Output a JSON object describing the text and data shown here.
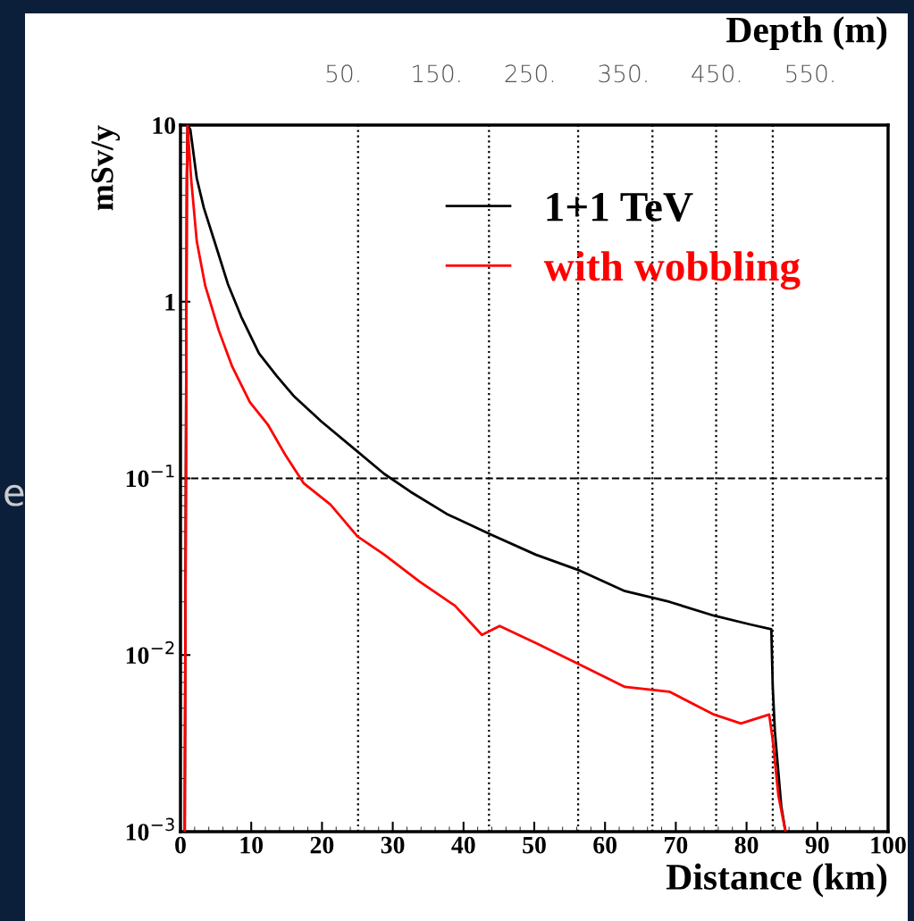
{
  "chart_data": {
    "type": "line",
    "xlabel": "Distance (km)",
    "ylabel": "mSv/y",
    "x2label": "Depth (m)",
    "annotations": [
      "e",
      "50.",
      "150.",
      "250.",
      "350.",
      "450.",
      "550."
    ],
    "log": "y",
    "xlim": [
      0,
      100
    ],
    "ylim": [
      0.001,
      10
    ],
    "xticks": [
      0,
      10,
      20,
      30,
      40,
      50,
      60,
      70,
      80,
      90,
      100
    ],
    "yticks": [
      {
        "value": 0.001,
        "label": "10$^{−3}$"
      },
      {
        "value": 0.01,
        "label": "10$^{−2}$"
      },
      {
        "value": 0.1,
        "label": "10$^{−1}$"
      },
      1,
      10
    ],
    "ref_lines": [
      {
        "axis": "x",
        "value": 25.1,
        "line_style": "dotted",
        "color": "#000000"
      },
      {
        "axis": "x",
        "value": 43.6,
        "line_style": "dotted",
        "color": "#000000"
      },
      {
        "axis": "x",
        "value": 56.2,
        "line_style": "dotted",
        "color": "#000000"
      },
      {
        "axis": "x",
        "value": 66.7,
        "line_style": "dotted",
        "color": "#000000"
      },
      {
        "axis": "x",
        "value": 75.7,
        "line_style": "dotted",
        "color": "#000000"
      },
      {
        "axis": "x",
        "value": 83.7,
        "line_style": "dotted",
        "color": "#000000"
      },
      {
        "axis": "y",
        "value": 0.1,
        "line_style": "dashed",
        "color": "#000000"
      }
    ],
    "grid": false,
    "legend": "top right",
    "line_style": "solid",
    "marker": "none",
    "series": [
      {
        "name": "1+1 TeV",
        "color": "#000000",
        "x": [
          0.6,
          0.9,
          1.0,
          1.4,
          2.3,
          3.3,
          4.8,
          6.7,
          8.6,
          11.1,
          13.6,
          16.1,
          19.9,
          25.0,
          28.8,
          32.5,
          37.6,
          43.9,
          50.2,
          56.5,
          62.8,
          69.1,
          75.4,
          80.5,
          83.5,
          83.7,
          84.0,
          84.9,
          85.5
        ],
        "values": [
          0.001,
          5.0,
          10,
          9.4,
          5.0,
          3.4,
          2.2,
          1.26,
          0.82,
          0.51,
          0.38,
          0.29,
          0.21,
          0.142,
          0.106,
          0.084,
          0.063,
          0.048,
          0.037,
          0.03,
          0.023,
          0.02,
          0.0167,
          0.0149,
          0.014,
          0.0066,
          0.0037,
          0.0014,
          0.001
        ]
      },
      {
        "name": "with wobbling",
        "color": "#ff0000",
        "x": [
          0.6,
          0.9,
          1.0,
          1.5,
          2.3,
          3.5,
          5.4,
          7.3,
          9.8,
          12.4,
          14.9,
          17.4,
          21.2,
          25.0,
          28.8,
          33.8,
          38.8,
          42.6,
          45.1,
          50.2,
          56.5,
          62.8,
          69.1,
          75.4,
          79.2,
          83.2,
          83.7,
          84.5,
          85.5
        ],
        "values": [
          0.001,
          5.0,
          10,
          5.0,
          2.2,
          1.23,
          0.69,
          0.43,
          0.27,
          0.2,
          0.134,
          0.094,
          0.071,
          0.047,
          0.037,
          0.026,
          0.019,
          0.013,
          0.0146,
          0.0117,
          0.0088,
          0.0066,
          0.0062,
          0.0046,
          0.0041,
          0.0046,
          0.0033,
          0.0016,
          0.001
        ]
      }
    ]
  }
}
